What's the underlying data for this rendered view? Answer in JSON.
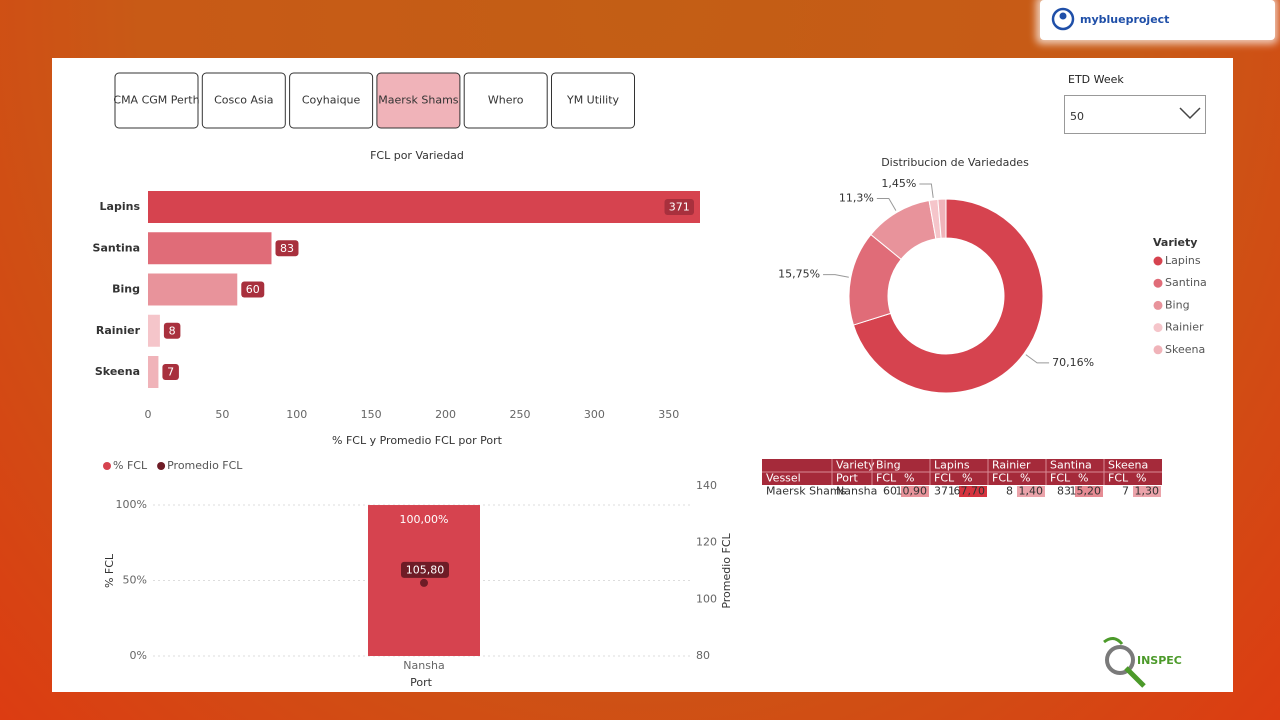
{
  "brand": "myblueproject",
  "slicer": {
    "buttons": [
      {
        "label": "CMA CGM Perth",
        "active": false
      },
      {
        "label": "Cosco Asia",
        "active": false
      },
      {
        "label": "Coyhaique",
        "active": false
      },
      {
        "label": "Maersk Shams",
        "active": true
      },
      {
        "label": "Whero",
        "active": false
      },
      {
        "label": "YM Utility",
        "active": false
      }
    ]
  },
  "dropdown": {
    "label": "ETD Week",
    "value": "50"
  },
  "chart_data": [
    {
      "type": "bar",
      "orientation": "horizontal",
      "title": "FCL por Variedad",
      "categories": [
        "Lapins",
        "Santina",
        "Bing",
        "Rainier",
        "Skeena"
      ],
      "values": [
        371,
        83,
        60,
        8,
        7
      ],
      "colors": [
        "#d6434f",
        "#e06c78",
        "#e8939b",
        "#f5c5ca",
        "#f0b3b9"
      ],
      "label_color": "#a8303d",
      "xlim": [
        0,
        371
      ],
      "xticks": [
        0,
        50,
        100,
        150,
        200,
        250,
        300,
        350
      ],
      "grid": false
    },
    {
      "type": "donut",
      "title": "Distribucion de Variedades",
      "legend_title": "Variety",
      "categories": [
        "Lapins",
        "Santina",
        "Bing",
        "Rainier",
        "Skeena"
      ],
      "values": [
        70.16,
        15.75,
        11.3,
        1.45,
        1.34
      ],
      "value_labels": [
        "70,16%",
        "15,75%",
        "11,3%",
        "1,45%",
        null
      ],
      "colors": [
        "#d6434f",
        "#e06c78",
        "#e8939b",
        "#f5c5ca",
        "#f0b3b9"
      ],
      "legend": "right"
    },
    {
      "type": "combo",
      "title": "% FCL y Promedio FCL por Port",
      "categories": [
        "Nansha"
      ],
      "xlabel": "Port",
      "ylabel": "% FCL",
      "y2label": "Promedio FCL",
      "series": [
        {
          "name": "% FCL",
          "color": "#d6434f",
          "values": [
            100
          ],
          "value_labels": [
            "100,00%"
          ]
        },
        {
          "name": "Promedio FCL",
          "color": "#6e1c26",
          "values": [
            105.8
          ],
          "value_labels": [
            "105,80"
          ],
          "axis": "y2"
        }
      ],
      "ylim": [
        0,
        112.6
      ],
      "yticks": [
        {
          "value": 0,
          "label": "0%"
        },
        {
          "value": 50,
          "label": "50%"
        },
        {
          "value": 100,
          "label": "100%"
        }
      ],
      "y2lim": [
        80,
        140
      ],
      "y2ticks": [
        80,
        100,
        120,
        140
      ],
      "grid": true,
      "legend": "top-left"
    }
  ],
  "table": {
    "corner_header": "Variety",
    "row_headers": [
      "Vessel",
      "Port"
    ],
    "groups": [
      {
        "name": "Bing",
        "columns": [
          "FCL",
          "%"
        ]
      },
      {
        "name": "Lapins",
        "columns": [
          "FCL",
          "%"
        ]
      },
      {
        "name": "Rainier",
        "columns": [
          "FCL",
          "%"
        ]
      },
      {
        "name": "Santina",
        "columns": [
          "FCL",
          "%"
        ]
      },
      {
        "name": "Skeena",
        "columns": [
          "FCL",
          "%"
        ]
      }
    ],
    "rows": [
      {
        "labels": [
          "Maersk Shams",
          "Nansha"
        ],
        "cells": [
          [
            "60",
            "10,90"
          ],
          [
            "371",
            "67,70"
          ],
          [
            "8",
            "1,40"
          ],
          [
            "83",
            "15,20"
          ],
          [
            "7",
            "1,30"
          ]
        ]
      }
    ]
  },
  "logo": "INSPEC"
}
